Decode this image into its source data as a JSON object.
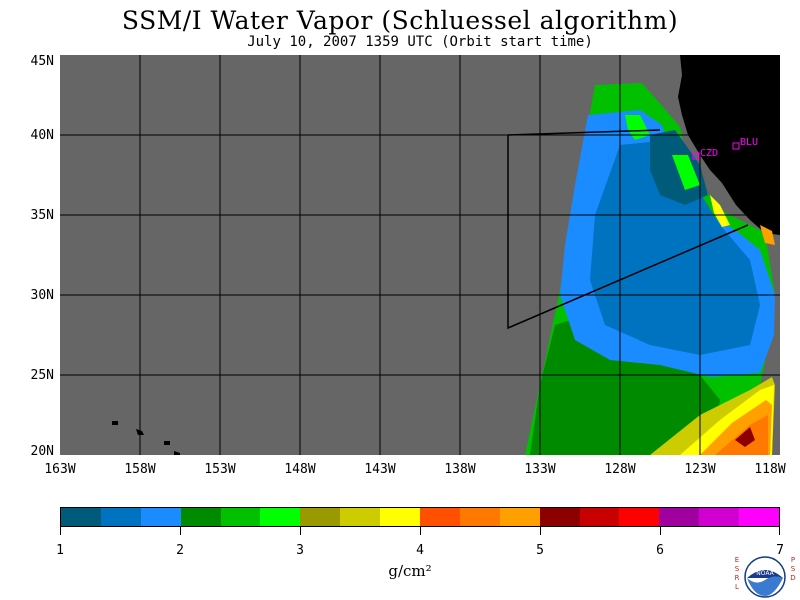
{
  "header": {
    "title": "SSM/I Water Vapor (Schluessel algorithm)",
    "subtitle": "July 10, 2007  1359 UTC  (Orbit start time)"
  },
  "map": {
    "lat_labels": [
      "45N",
      "40N",
      "35N",
      "30N",
      "25N",
      "20N"
    ],
    "lon_labels": [
      "163W",
      "158W",
      "153W",
      "148W",
      "143W",
      "138W",
      "133W",
      "128W",
      "123W",
      "118W"
    ],
    "stations": [
      {
        "label": "CZD"
      },
      {
        "label": "BLU"
      }
    ],
    "colors": {
      "no_data": "#666666",
      "land": "#000000",
      "station": "#ff00ff"
    }
  },
  "colorbar": {
    "labels": [
      "1",
      "2",
      "3",
      "4",
      "5",
      "6",
      "7"
    ],
    "units": "g/cm²",
    "colors": [
      "#005a7a",
      "#0073c0",
      "#1a8cff",
      "#008a00",
      "#00c000",
      "#00ff00",
      "#9a9a00",
      "#cccc00",
      "#ffff00",
      "#ff5000",
      "#ff7800",
      "#ffa000",
      "#8c0000",
      "#c80000",
      "#ff0000",
      "#a000a0",
      "#d000d0",
      "#ff00ff"
    ]
  },
  "logo": {
    "left_text": "ESRL",
    "right_text": "PSD",
    "center_text": "NOAA"
  }
}
